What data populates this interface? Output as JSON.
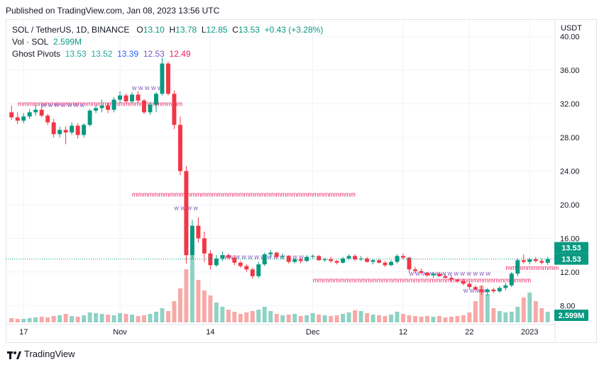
{
  "published": "Published on TradingView.com, Jan 08, 2023 13:56 UTC",
  "legend": {
    "symbol": "SOL / TetherUS, 1D, BINANCE",
    "o_label": "O",
    "o_val": "13.10",
    "h_label": "H",
    "h_val": "13.78",
    "l_label": "L",
    "l_val": "12.85",
    "c_label": "C",
    "c_val": "13.53",
    "change": "+0.43 (+3.28%)",
    "vol_label": "Vol · SOL",
    "vol_val": "2.599M",
    "pivots_label": "Ghost Pivots",
    "pivots_vals": [
      "13.53",
      "13.52",
      "13.39",
      "12.53",
      "12.49"
    ],
    "pivots_colors": [
      "#26a69a",
      "#26a69a",
      "#2962ff",
      "#7e57c2",
      "#e91e63"
    ]
  },
  "footer_brand": "TradingView",
  "colors": {
    "up": "#089981",
    "down": "#f23645",
    "vol_up": "#8ed2c5",
    "vol_down": "#f7a9a7",
    "pivot_m": "#e91e63",
    "pivot_w": "#7e57c2",
    "price_tag": "#089981",
    "grid": "#f0f3fa"
  },
  "chart_data": {
    "type": "candlestick",
    "unit": "USDT",
    "ylim": [
      6,
      42
    ],
    "y_ticks": [
      "8.00",
      "12.00",
      "16.00",
      "20.00",
      "24.00",
      "28.00",
      "32.00",
      "36.00",
      "40.00"
    ],
    "x_ticks": [
      "17",
      "Nov",
      "14",
      "Dec",
      "12",
      "22",
      "2023"
    ],
    "last_price": "13.53",
    "last_volume": "2.599M",
    "candles": [
      [
        31.0,
        31.8,
        30.1,
        30.4
      ],
      [
        30.4,
        31.0,
        29.6,
        30.0
      ],
      [
        30.0,
        30.9,
        29.7,
        30.5
      ],
      [
        30.5,
        31.4,
        30.2,
        31.0
      ],
      [
        31.0,
        31.9,
        30.6,
        31.3
      ],
      [
        31.3,
        32.0,
        30.4,
        30.6
      ],
      [
        30.6,
        30.8,
        29.5,
        29.8
      ],
      [
        29.8,
        30.2,
        28.0,
        28.4
      ],
      [
        28.4,
        29.3,
        28.0,
        28.9
      ],
      [
        28.9,
        29.3,
        27.2,
        28.6
      ],
      [
        28.6,
        29.8,
        28.3,
        29.4
      ],
      [
        29.4,
        29.7,
        27.9,
        28.3
      ],
      [
        28.3,
        29.7,
        28.0,
        29.5
      ],
      [
        29.5,
        31.4,
        29.3,
        31.2
      ],
      [
        31.2,
        31.9,
        30.9,
        31.5
      ],
      [
        31.5,
        32.5,
        31.0,
        31.8
      ],
      [
        31.8,
        32.1,
        30.9,
        31.3
      ],
      [
        31.3,
        32.8,
        31.0,
        32.5
      ],
      [
        32.5,
        33.5,
        32.1,
        33.0
      ],
      [
        33.0,
        33.2,
        32.1,
        32.3
      ],
      [
        32.3,
        33.4,
        32.0,
        33.1
      ],
      [
        33.1,
        33.5,
        32.1,
        32.4
      ],
      [
        32.4,
        32.6,
        30.8,
        31.0
      ],
      [
        31.0,
        32.2,
        30.7,
        31.9
      ],
      [
        31.9,
        33.4,
        31.0,
        33.2
      ],
      [
        33.2,
        37.5,
        33.0,
        36.8
      ],
      [
        36.8,
        37.0,
        33.0,
        33.2
      ],
      [
        33.2,
        33.6,
        29.0,
        29.5
      ],
      [
        29.5,
        30.5,
        23.5,
        24.0
      ],
      [
        24.0,
        24.6,
        13.0,
        14.0
      ],
      [
        14.0,
        18.2,
        13.5,
        17.5
      ],
      [
        17.5,
        18.5,
        15.5,
        16.0
      ],
      [
        16.0,
        16.8,
        13.2,
        14.2
      ],
      [
        14.2,
        14.6,
        12.3,
        12.8
      ],
      [
        12.8,
        14.0,
        12.6,
        13.6
      ],
      [
        13.6,
        14.4,
        13.3,
        14.0
      ],
      [
        14.0,
        14.2,
        13.5,
        13.7
      ],
      [
        13.7,
        14.0,
        12.8,
        13.1
      ],
      [
        13.1,
        13.3,
        12.5,
        12.7
      ],
      [
        12.7,
        12.9,
        12.0,
        12.3
      ],
      [
        12.3,
        12.5,
        11.2,
        11.5
      ],
      [
        11.5,
        13.2,
        11.3,
        12.9
      ],
      [
        12.9,
        14.3,
        12.7,
        14.1
      ],
      [
        14.1,
        14.6,
        13.8,
        14.3
      ],
      [
        14.3,
        14.4,
        13.6,
        13.8
      ],
      [
        13.8,
        14.2,
        13.5,
        13.9
      ],
      [
        13.9,
        14.0,
        13.0,
        13.2
      ],
      [
        13.2,
        13.6,
        13.0,
        13.5
      ],
      [
        13.5,
        13.7,
        13.0,
        13.3
      ],
      [
        13.3,
        14.0,
        13.2,
        13.8
      ],
      [
        13.8,
        14.1,
        13.6,
        13.9
      ],
      [
        13.9,
        14.0,
        13.3,
        13.4
      ],
      [
        13.4,
        13.7,
        13.2,
        13.5
      ],
      [
        13.5,
        13.8,
        13.1,
        13.3
      ],
      [
        13.3,
        13.4,
        12.9,
        13.1
      ],
      [
        13.1,
        13.8,
        13.0,
        13.6
      ],
      [
        13.6,
        14.1,
        13.4,
        13.9
      ],
      [
        13.9,
        14.1,
        13.3,
        13.5
      ],
      [
        13.5,
        13.9,
        13.3,
        13.6
      ],
      [
        13.6,
        13.8,
        13.1,
        13.2
      ],
      [
        13.2,
        13.5,
        12.9,
        13.4
      ],
      [
        13.4,
        13.6,
        13.0,
        13.1
      ],
      [
        13.1,
        13.3,
        12.6,
        12.8
      ],
      [
        12.8,
        13.4,
        12.7,
        13.2
      ],
      [
        13.2,
        14.1,
        13.0,
        13.9
      ],
      [
        13.9,
        14.2,
        13.5,
        13.7
      ],
      [
        13.7,
        13.8,
        11.9,
        12.3
      ],
      [
        12.3,
        12.6,
        11.8,
        12.1
      ],
      [
        12.1,
        12.4,
        11.7,
        11.9
      ],
      [
        11.9,
        12.0,
        11.4,
        11.6
      ],
      [
        11.6,
        12.0,
        11.3,
        11.8
      ],
      [
        11.8,
        12.0,
        11.4,
        11.5
      ],
      [
        11.5,
        11.8,
        11.2,
        11.3
      ],
      [
        11.3,
        11.6,
        10.9,
        11.1
      ],
      [
        11.1,
        11.2,
        10.7,
        10.9
      ],
      [
        10.9,
        11.2,
        10.4,
        10.6
      ],
      [
        10.6,
        10.9,
        9.9,
        10.2
      ],
      [
        10.2,
        10.4,
        9.6,
        9.9
      ],
      [
        9.9,
        10.4,
        9.3,
        9.6
      ],
      [
        9.6,
        10.1,
        9.2,
        9.9
      ],
      [
        9.9,
        10.1,
        9.5,
        9.7
      ],
      [
        9.7,
        10.3,
        9.5,
        10.1
      ],
      [
        10.1,
        10.7,
        9.8,
        10.4
      ],
      [
        10.4,
        12.0,
        10.2,
        11.8
      ],
      [
        11.8,
        13.6,
        11.5,
        13.4
      ],
      [
        13.4,
        14.1,
        13.0,
        13.2
      ],
      [
        13.2,
        13.7,
        12.9,
        13.5
      ],
      [
        13.5,
        13.8,
        13.1,
        13.3
      ],
      [
        13.3,
        13.6,
        12.9,
        13.1
      ],
      [
        13.1,
        13.8,
        12.85,
        13.53
      ]
    ],
    "volumes": [
      6,
      5,
      5,
      6,
      7,
      8,
      7,
      9,
      10,
      12,
      9,
      8,
      10,
      14,
      13,
      12,
      11,
      10,
      13,
      12,
      11,
      9,
      10,
      12,
      15,
      20,
      16,
      30,
      48,
      75,
      110,
      60,
      45,
      38,
      28,
      22,
      18,
      15,
      12,
      14,
      16,
      18,
      22,
      16,
      12,
      10,
      11,
      12,
      9,
      10,
      13,
      11,
      10,
      9,
      10,
      12,
      14,
      17,
      16,
      13,
      11,
      10,
      9,
      11,
      15,
      12,
      10,
      9,
      8,
      9,
      8,
      9,
      7,
      8,
      9,
      10,
      14,
      30,
      52,
      40,
      20,
      16,
      14,
      15,
      22,
      35,
      42,
      30,
      20,
      15
    ]
  }
}
